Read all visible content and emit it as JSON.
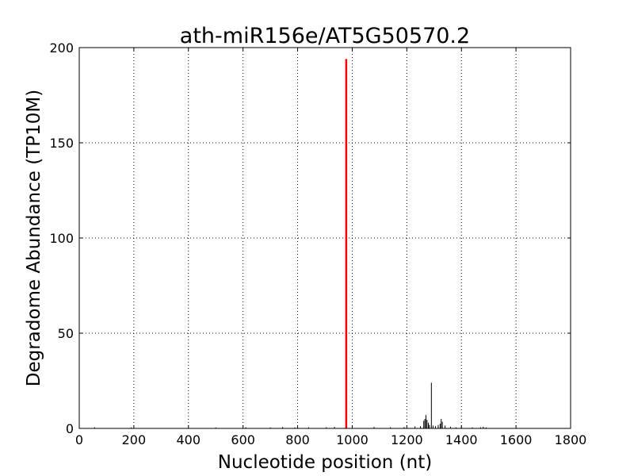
{
  "chart_data": {
    "type": "bar",
    "title": "ath-miR156e/AT5G50570.2",
    "xlabel": "Nucleotide position (nt)",
    "ylabel": "Degradome Abundance (TP10M)",
    "xlim": [
      0,
      1800
    ],
    "ylim": [
      0,
      200
    ],
    "xticks": [
      0,
      200,
      400,
      600,
      800,
      1000,
      1200,
      1400,
      1600,
      1800
    ],
    "yticks": [
      0,
      50,
      100,
      150,
      200
    ],
    "grid": true,
    "highlight_color": "#ff0000",
    "bar_color": "#000000",
    "highlight": {
      "x": 978,
      "y": 194
    },
    "series": [
      {
        "values": [
          {
            "x": 56,
            "y": 0.6
          },
          {
            "x": 190,
            "y": 0.5
          },
          {
            "x": 500,
            "y": 0.5
          },
          {
            "x": 610,
            "y": 0.6
          },
          {
            "x": 700,
            "y": 0.5
          },
          {
            "x": 745,
            "y": 0.7
          },
          {
            "x": 790,
            "y": 0.5
          },
          {
            "x": 840,
            "y": 0.6
          },
          {
            "x": 905,
            "y": 0.6
          },
          {
            "x": 935,
            "y": 0.8
          },
          {
            "x": 1080,
            "y": 0.8
          },
          {
            "x": 1140,
            "y": 0.6
          },
          {
            "x": 1190,
            "y": 0.7
          },
          {
            "x": 1230,
            "y": 1.0
          },
          {
            "x": 1250,
            "y": 1.2
          },
          {
            "x": 1262,
            "y": 4.0
          },
          {
            "x": 1266,
            "y": 5.0
          },
          {
            "x": 1270,
            "y": 7.0
          },
          {
            "x": 1274,
            "y": 4.5
          },
          {
            "x": 1279,
            "y": 3.0
          },
          {
            "x": 1283,
            "y": 1.8
          },
          {
            "x": 1290,
            "y": 24.0
          },
          {
            "x": 1296,
            "y": 1.5
          },
          {
            "x": 1305,
            "y": 1.2
          },
          {
            "x": 1315,
            "y": 1.8
          },
          {
            "x": 1322,
            "y": 2.5
          },
          {
            "x": 1326,
            "y": 5.0
          },
          {
            "x": 1330,
            "y": 3.5
          },
          {
            "x": 1340,
            "y": 1.5
          },
          {
            "x": 1360,
            "y": 0.9
          },
          {
            "x": 1380,
            "y": 0.6
          },
          {
            "x": 1400,
            "y": 0.8
          },
          {
            "x": 1440,
            "y": 0.5
          },
          {
            "x": 1470,
            "y": 0.6
          },
          {
            "x": 1480,
            "y": 0.9
          },
          {
            "x": 1490,
            "y": 0.5
          }
        ]
      }
    ]
  }
}
